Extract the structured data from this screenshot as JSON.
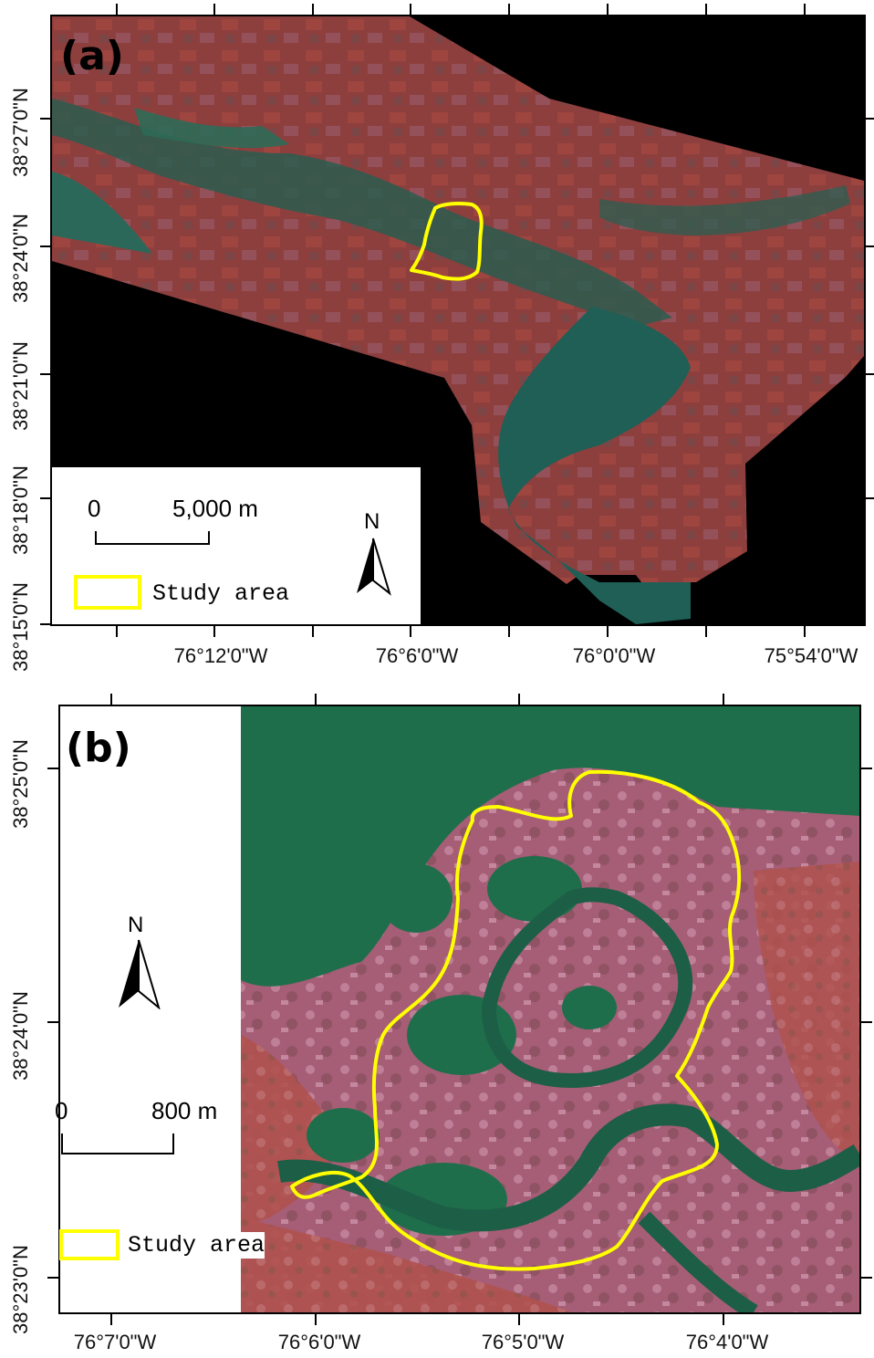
{
  "panel_a": {
    "label": "(a)",
    "lon_ticks": [
      "76°12'0\"W",
      "76°6'0\"W",
      "76°0'0\"W",
      "75°54'0\"W"
    ],
    "lat_ticks": [
      "38°27'0\"N",
      "38°24'0\"N",
      "38°21'0\"N",
      "38°18'0\"N",
      "38°15'0\"N"
    ],
    "scale_zero": "0",
    "scale_value": "5,000 m",
    "north_label": "N",
    "legend_label": "Study area",
    "colors": {
      "water": "#1f5a52",
      "land": "#8c3d3c",
      "nodata": "#000000",
      "outline": "#ffff00"
    }
  },
  "panel_b": {
    "label": "(b)",
    "lon_ticks": [
      "76°7'0\"W",
      "76°6'0\"W",
      "76°5'0\"W",
      "76°4'0\"W"
    ],
    "lat_ticks": [
      "38°25'0\"N",
      "38°24'0\"N",
      "38°23'0\"N"
    ],
    "scale_zero": "0",
    "scale_value": "800 m",
    "north_label": "N",
    "legend_label": "Study area",
    "colors": {
      "water": "#1d6e4a",
      "marsh": "#b0607a",
      "outline": "#ffff00"
    }
  }
}
